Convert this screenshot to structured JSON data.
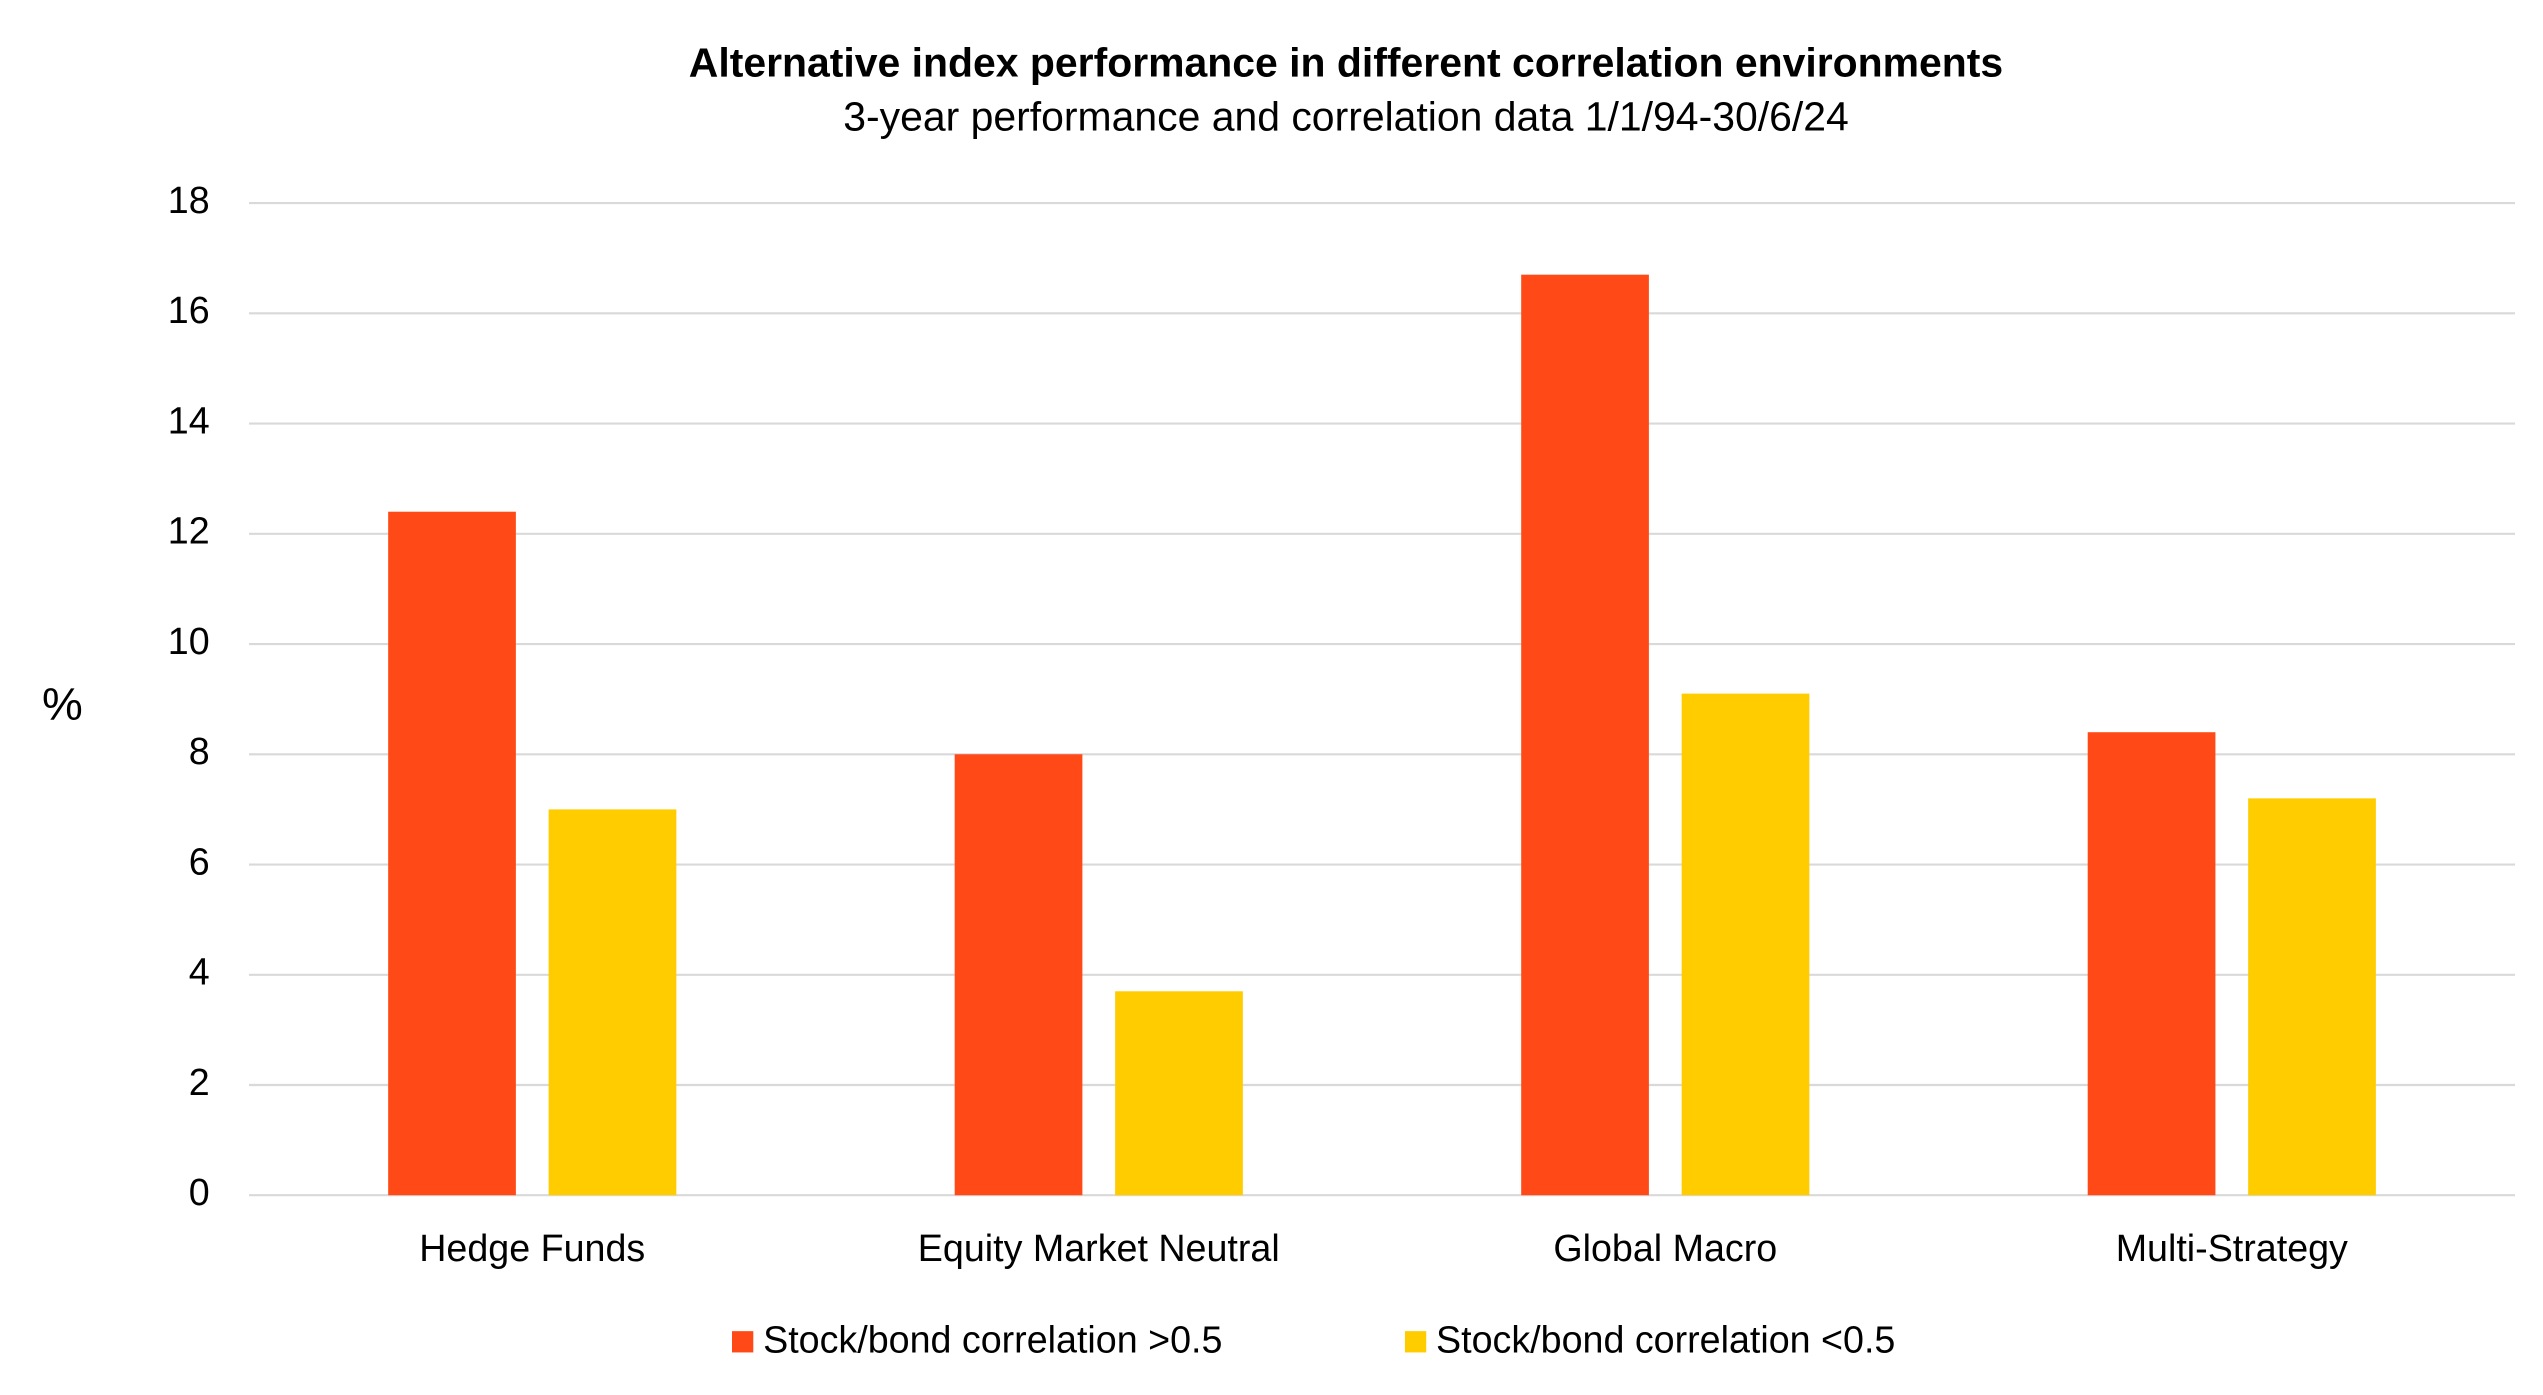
{
  "chart_data": {
    "type": "bar",
    "title": "Alternative index performance in different correlation environments",
    "subtitle": "3-year performance and correlation data 1/1/94-30/6/24",
    "y_label": "%",
    "categories": [
      "Hedge Funds",
      "Equity Market Neutral",
      "Global Macro",
      "Multi-Strategy"
    ],
    "series": [
      {
        "name": "Stock/bond correlation >0.5",
        "color": "#ff4a17",
        "values": [
          12.4,
          8.0,
          16.7,
          8.4
        ]
      },
      {
        "name": "Stock/bond correlation <0.5",
        "color": "#ffcc00",
        "values": [
          7.0,
          3.7,
          9.1,
          7.2
        ]
      }
    ],
    "ylim": [
      0,
      18
    ],
    "yticks": [
      0,
      2,
      4,
      6,
      8,
      10,
      12,
      14,
      16,
      18
    ],
    "grid": true,
    "legend": "bottom"
  }
}
